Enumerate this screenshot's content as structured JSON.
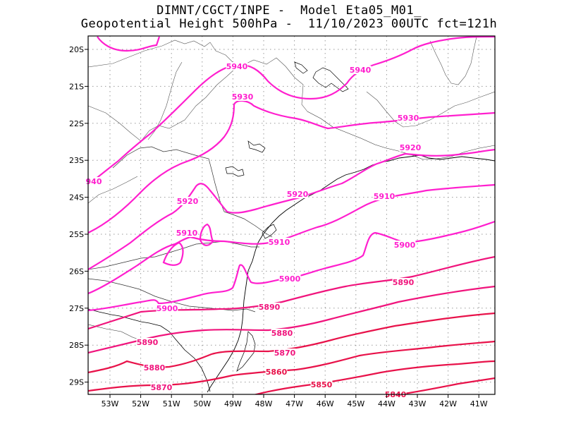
{
  "header": {
    "line1": "DIMNT/CGCT/INPE -  Model Eta05_M01_",
    "line2": "Geopotential Height 500hPa -  11/10/2023 00UTC fct=121h"
  },
  "axes": {
    "y_ticks": [
      "20S",
      "21S",
      "22S",
      "23S",
      "24S",
      "25S",
      "26S",
      "27S",
      "28S",
      "29S"
    ],
    "x_ticks": [
      "53W",
      "52W",
      "51W",
      "50W",
      "49W",
      "48W",
      "47W",
      "46W",
      "45W",
      "44W",
      "43W",
      "42W",
      "41W"
    ]
  },
  "colors": {
    "high": "#ff1fce",
    "mid": "#f0147c",
    "low": "#e8124a",
    "coast": "#000000",
    "grid": "#9a9a9a"
  },
  "contours": [
    {
      "value": 5940,
      "labels": [
        "5940",
        "5940",
        "940"
      ]
    },
    {
      "value": 5930,
      "labels": [
        "5930",
        "5930"
      ]
    },
    {
      "value": 5920,
      "labels": [
        "5920",
        "5920",
        "5920"
      ]
    },
    {
      "value": 5910,
      "labels": [
        "5910",
        "5910",
        "5910"
      ]
    },
    {
      "value": 5900,
      "labels": [
        "5900",
        "5900",
        "5900"
      ]
    },
    {
      "value": 5890,
      "labels": [
        "5890",
        "5890",
        "5890"
      ]
    },
    {
      "value": 5880,
      "labels": [
        "5880",
        "5880"
      ]
    },
    {
      "value": 5870,
      "labels": [
        "5870",
        "5870"
      ]
    },
    {
      "value": 5860,
      "labels": [
        "5860"
      ]
    },
    {
      "value": 5850,
      "labels": [
        "5850"
      ]
    },
    {
      "value": 5840,
      "labels": [
        "5840"
      ]
    }
  ]
}
